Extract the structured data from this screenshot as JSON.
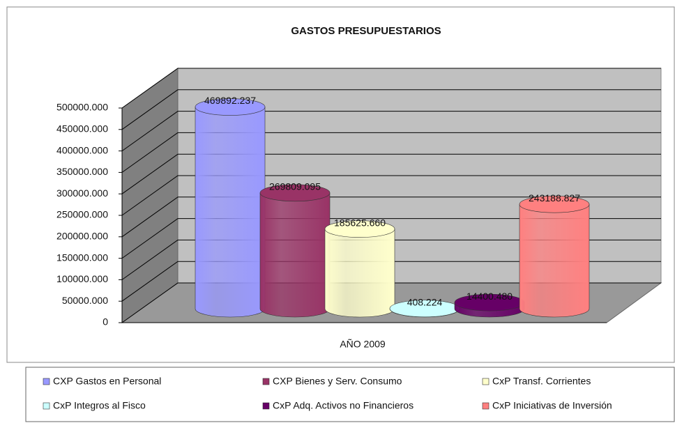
{
  "chart_data": {
    "type": "bar3d",
    "title": "GASTOS PRESUPUESTARIOS",
    "categories": [
      "AÑO 2009"
    ],
    "series": [
      {
        "name": "CXP Gastos en Personal",
        "color": "#9999ff",
        "values": [
          469892237
        ],
        "value_labels": [
          "469892.237"
        ]
      },
      {
        "name": "CXP Bienes y Serv. Consumo",
        "color": "#993366",
        "values": [
          269809095
        ],
        "value_labels": [
          "269809.095"
        ]
      },
      {
        "name": "CxP Transf. Corrientes",
        "color": "#ffffcc",
        "values": [
          185625660
        ],
        "value_labels": [
          "185625.660"
        ]
      },
      {
        "name": "CxP Integros al Fisco",
        "color": "#ccffff",
        "values": [
          408224
        ],
        "value_labels": [
          "408.224"
        ]
      },
      {
        "name": "CxP Adq. Activos no Financieros",
        "color": "#660066",
        "values": [
          14400480
        ],
        "value_labels": [
          "14400.480"
        ]
      },
      {
        "name": "CxP Iniciativas de Inversión",
        "color": "#ff8080",
        "values": [
          243188827
        ],
        "value_labels": [
          "243188.827"
        ]
      }
    ],
    "ylim": [
      0,
      500000000
    ],
    "yticks": [
      0,
      {
        "value": 50000000,
        "label": "50000.000"
      },
      {
        "value": 100000000,
        "label": "100000.000"
      },
      {
        "value": 150000000,
        "label": "150000.000"
      },
      {
        "value": 200000000,
        "label": "200000.000"
      },
      {
        "value": 250000000,
        "label": "250000.000"
      },
      {
        "value": 300000000,
        "label": "300000.000"
      },
      {
        "value": 350000000,
        "label": "350000.000"
      },
      {
        "value": 400000000,
        "label": "400000.000"
      },
      {
        "value": 450000000,
        "label": "450000.000"
      },
      {
        "value": 500000000,
        "label": "500000.000"
      }
    ],
    "grid": true,
    "legend": "bottom"
  }
}
